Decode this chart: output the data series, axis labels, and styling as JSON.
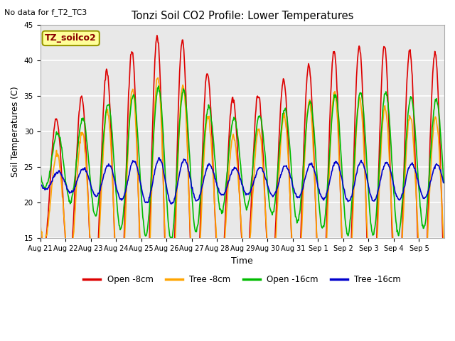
{
  "title": "Tonzi Soil CO2 Profile: Lower Temperatures",
  "subtitle": "No data for f_T2_TC3",
  "ylabel": "Soil Temperatures (C)",
  "xlabel": "Time",
  "ylim": [
    15,
    45
  ],
  "yticks": [
    15,
    20,
    25,
    30,
    35,
    40,
    45
  ],
  "plot_bg_color": "#e8e8e8",
  "fig_bg_color": "#ffffff",
  "watermark_text": "TZ_soilco2",
  "x_labels": [
    "Aug 21",
    "Aug 22",
    "Aug 23",
    "Aug 24",
    "Aug 25",
    "Aug 26",
    "Aug 27",
    "Aug 28",
    "Aug 29",
    "Aug 30",
    "Aug 31",
    "Sep 1",
    "Sep 2",
    "Sep 3",
    "Sep 4",
    "Sep 5"
  ],
  "line_width": 1.2,
  "legend_entries": [
    "Open -8cm",
    "Tree -8cm",
    "Open -16cm",
    "Tree -16cm"
  ],
  "legend_colors": [
    "#dd0000",
    "#ffa500",
    "#00bb00",
    "#0000cc"
  ],
  "open8_params": {
    "base": 22.0,
    "amp_day": [
      8,
      11,
      14,
      18,
      20,
      22,
      20,
      14,
      12,
      14,
      16,
      18,
      20,
      20,
      20,
      19
    ],
    "phase": 0.38
  },
  "tree8_params": {
    "base": 20.0,
    "amp_day": [
      5,
      8,
      11,
      14,
      17,
      18,
      16,
      10,
      9,
      11,
      13,
      15,
      16,
      14,
      13,
      12
    ],
    "phase": 0.4
  },
  "open16_params": {
    "base": 25.5,
    "amp_day": [
      3,
      5,
      7,
      9,
      10,
      11,
      10,
      7,
      6,
      7,
      8,
      9,
      10,
      10,
      10,
      9
    ],
    "phase": 0.43
  },
  "tree16_params": {
    "base": 23.0,
    "amp_day": [
      1,
      1.5,
      2,
      2.5,
      3,
      3.2,
      3,
      2,
      1.8,
      2,
      2.2,
      2.5,
      2.8,
      2.8,
      2.6,
      2.4
    ],
    "phase": 0.46
  },
  "n_per_day": 48
}
